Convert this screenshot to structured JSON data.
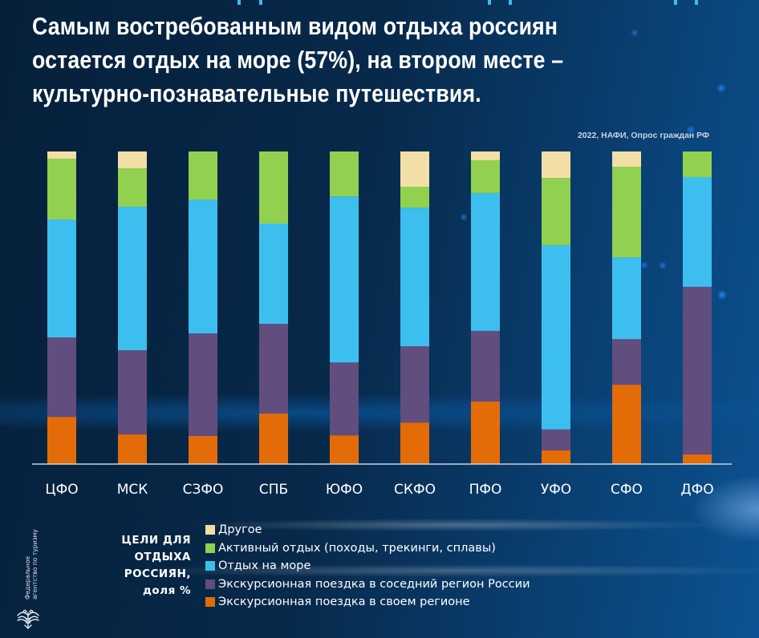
{
  "header": {
    "title": "Самым востребованным видом отдыха россиян остается отдых на море (57%), на втором месте – культурно-познавательные путешествия.",
    "source": "2022, НАФИ, Опрос граждан РФ"
  },
  "legend": {
    "title_lines": [
      "ЦЕЛИ ДЛЯ",
      "ОТДЫХА",
      "РОССИЯН,",
      "доля %"
    ],
    "items": [
      {
        "label": "Другое",
        "color": "#f2dfa6"
      },
      {
        "label": "Активный отдых (походы, трекинги, сплавы)",
        "color": "#92d050"
      },
      {
        "label": "Отдых на море",
        "color": "#3cbfee"
      },
      {
        "label": "Экскурсионная поездка в соседний регион России",
        "color": "#614d7e"
      },
      {
        "label": "Экскурсионная поездка в своем регионе",
        "color": "#e36c09"
      }
    ]
  },
  "logo": {
    "text_lines": [
      "Федеральное",
      "агентство по туризму"
    ],
    "icon": "eagle-emblem-icon"
  },
  "chart_data": {
    "type": "bar",
    "stacked": true,
    "title": "Самым востребованным видом отдыха россиян остается отдых на море (57%), на втором месте – культурно-познавательные путешествия.",
    "subtitle": "2022, НАФИ, Опрос граждан РФ",
    "xlabel": "",
    "ylabel": "ЦЕЛИ ДЛЯ ОТДЫХА РОССИЯН, доля %",
    "ylim": [
      0,
      100
    ],
    "grid": false,
    "legend_position": "bottom",
    "categories": [
      "ЦФО",
      "МСК",
      "СЗФО",
      "СПБ",
      "ЮФО",
      "СКФО",
      "ПФО",
      "УФО",
      "СФО",
      "ДФО"
    ],
    "series": [
      {
        "name": "Экскурсионная поездка в своем регионе",
        "color": "#e36c09",
        "values": [
          15.1,
          9.5,
          9.0,
          16.2,
          9.2,
          13.3,
          20.0,
          4.4,
          25.4,
          3.1
        ]
      },
      {
        "name": "Экскурсионная поездка в соседний регион России",
        "color": "#614d7e",
        "values": [
          25.4,
          26.9,
          32.8,
          28.7,
          23.3,
          24.4,
          22.6,
          6.7,
          14.6,
          53.6
        ]
      },
      {
        "name": "Отдых на море",
        "color": "#3cbfee",
        "values": [
          37.7,
          45.9,
          42.8,
          32.1,
          53.1,
          44.4,
          44.1,
          59.0,
          26.2,
          35.1
        ]
      },
      {
        "name": "Активный отдых (походы, трекинги, сплавы)",
        "color": "#92d050",
        "values": [
          19.5,
          12.3,
          15.4,
          23.1,
          14.4,
          6.7,
          10.5,
          21.5,
          29.0,
          8.2
        ]
      },
      {
        "name": "Другое",
        "color": "#f2dfa6",
        "values": [
          2.3,
          5.4,
          0.0,
          0.0,
          0.0,
          11.3,
          2.8,
          8.5,
          4.9,
          0.0
        ]
      }
    ]
  }
}
